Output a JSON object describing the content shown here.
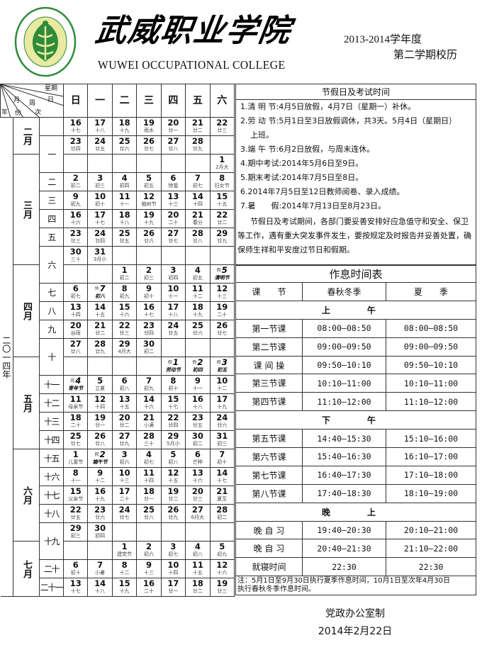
{
  "header": {
    "logo_text": "武威职业学院 WUWEI OCCUPATIONAL COLLEGE 2002.8.8",
    "title_cn": "武威职业学院",
    "title_en": "WUWEI OCCUPATIONAL COLLEGE",
    "term_line1": "2013-2014学年度",
    "term_line2": "第二学期校历",
    "colors": {
      "logo_green": "#2e8b3a",
      "logo_yellow": "#e8eaa0"
    }
  },
  "calendar": {
    "corner": {
      "weekday": "星期",
      "day": "日",
      "month": "月",
      "week": "周",
      "year": "年",
      "part": "份",
      "order": "次"
    },
    "weekdays": [
      "日",
      "一",
      "二",
      "三",
      "四",
      "五",
      "六"
    ],
    "year": "二〇一四年",
    "rows": [
      {
        "month": {
          "label": "二月",
          "span": 2
        },
        "week": {
          "label": "",
          "span": 1
        },
        "days": [
          {
            "d": "16",
            "l": "十七"
          },
          {
            "d": "17",
            "l": "十八"
          },
          {
            "d": "18",
            "l": "十九"
          },
          {
            "d": "19",
            "l": "雨水"
          },
          {
            "d": "20",
            "l": "廿一"
          },
          {
            "d": "21",
            "l": "廿二"
          },
          {
            "d": "22",
            "l": "廿三"
          }
        ]
      },
      {
        "week": {
          "label": "一",
          "span": 2
        },
        "days": [
          {
            "d": "23",
            "l": "廿四"
          },
          {
            "d": "24",
            "l": "廿五"
          },
          {
            "d": "25",
            "l": "廿六"
          },
          {
            "d": "26",
            "l": "廿七"
          },
          {
            "d": "27",
            "l": "廿八"
          },
          {
            "d": "28",
            "l": "廿九"
          },
          null
        ]
      },
      {
        "month": {
          "label": "三月",
          "span": 6
        },
        "days": [
          null,
          null,
          null,
          null,
          null,
          null,
          {
            "d": "1",
            "l": "2月大"
          }
        ]
      },
      {
        "week": {
          "label": "二",
          "span": 1
        },
        "days": [
          {
            "d": "2",
            "l": "初二"
          },
          {
            "d": "3",
            "l": "初三"
          },
          {
            "d": "4",
            "l": "初四"
          },
          {
            "d": "5",
            "l": "初五"
          },
          {
            "d": "6",
            "l": "惊蛰"
          },
          {
            "d": "7",
            "l": "初七"
          },
          {
            "d": "8",
            "l": "妇女节"
          }
        ]
      },
      {
        "week": {
          "label": "三",
          "span": 1
        },
        "days": [
          {
            "d": "9",
            "l": "初九"
          },
          {
            "d": "10",
            "l": "初十"
          },
          {
            "d": "11",
            "l": "十一"
          },
          {
            "d": "12",
            "l": "植树节"
          },
          {
            "d": "13",
            "l": "十三"
          },
          {
            "d": "14",
            "l": "十四"
          },
          {
            "d": "15",
            "l": "十五"
          }
        ]
      },
      {
        "week": {
          "label": "四",
          "span": 1
        },
        "days": [
          {
            "d": "16",
            "l": "十六"
          },
          {
            "d": "17",
            "l": "十七"
          },
          {
            "d": "18",
            "l": "十八"
          },
          {
            "d": "19",
            "l": "十九"
          },
          {
            "d": "20",
            "l": "二十"
          },
          {
            "d": "21",
            "l": "春分"
          },
          {
            "d": "22",
            "l": "廿二"
          }
        ]
      },
      {
        "week": {
          "label": "五",
          "span": 1
        },
        "days": [
          {
            "d": "23",
            "l": "廿三"
          },
          {
            "d": "24",
            "l": "廿四"
          },
          {
            "d": "25",
            "l": "廿五"
          },
          {
            "d": "26",
            "l": "廿六"
          },
          {
            "d": "27",
            "l": "廿七"
          },
          {
            "d": "28",
            "l": "廿八"
          },
          {
            "d": "29",
            "l": "廿九"
          }
        ]
      },
      {
        "week": {
          "label": "六",
          "span": 2
        },
        "days": [
          {
            "d": "30",
            "l": "三十"
          },
          {
            "d": "31",
            "l": "3月小"
          },
          null,
          null,
          null,
          null,
          null
        ]
      },
      {
        "month": {
          "label": "四月",
          "span": 5
        },
        "days": [
          null,
          null,
          {
            "d": "1",
            "l": "初二"
          },
          {
            "d": "2",
            "l": "初三"
          },
          {
            "d": "3",
            "l": "初四"
          },
          {
            "d": "4",
            "l": "初五"
          },
          {
            "d": "5",
            "l": "清明节",
            "mark": "假",
            "em": true
          }
        ]
      },
      {
        "week": {
          "label": "七",
          "span": 1
        },
        "days": [
          {
            "d": "6",
            "l": "初七"
          },
          {
            "d": "7",
            "l": "初八",
            "mark": "休",
            "em": true
          },
          {
            "d": "8",
            "l": "初九"
          },
          {
            "d": "9",
            "l": "初十"
          },
          {
            "d": "10",
            "l": "十一"
          },
          {
            "d": "11",
            "l": "十二"
          },
          {
            "d": "12",
            "l": "十三"
          }
        ]
      },
      {
        "week": {
          "label": "八",
          "span": 1
        },
        "days": [
          {
            "d": "13",
            "l": "十四"
          },
          {
            "d": "14",
            "l": "十五"
          },
          {
            "d": "15",
            "l": "十六"
          },
          {
            "d": "16",
            "l": "十七"
          },
          {
            "d": "17",
            "l": "十八"
          },
          {
            "d": "18",
            "l": "十九"
          },
          {
            "d": "19",
            "l": "二十"
          }
        ]
      },
      {
        "week": {
          "label": "九",
          "span": 1
        },
        "days": [
          {
            "d": "20",
            "l": "谷雨"
          },
          {
            "d": "21",
            "l": "廿二"
          },
          {
            "d": "22",
            "l": "廿三"
          },
          {
            "d": "23",
            "l": "廿四"
          },
          {
            "d": "24",
            "l": "廿五"
          },
          {
            "d": "25",
            "l": "廿六"
          },
          {
            "d": "26",
            "l": "廿七"
          }
        ]
      },
      {
        "week": {
          "label": "十",
          "span": 2
        },
        "days": [
          {
            "d": "27",
            "l": "廿八"
          },
          {
            "d": "28",
            "l": "廿九"
          },
          {
            "d": "29",
            "l": "4月大"
          },
          {
            "d": "30",
            "l": "初二"
          },
          null,
          null,
          null
        ]
      },
      {
        "month": {
          "label": "五月",
          "span": 5
        },
        "days": [
          null,
          null,
          null,
          null,
          {
            "d": "1",
            "l": "劳动节",
            "mark": "假",
            "em": true
          },
          {
            "d": "2",
            "l": "初四",
            "mark": "假",
            "em": true
          },
          {
            "d": "3",
            "l": "初五",
            "mark": "假",
            "em": true
          }
        ]
      },
      {
        "week": {
          "label": "十一",
          "span": 1
        },
        "days": [
          {
            "d": "4",
            "l": "青年节",
            "mark": "班",
            "em": true
          },
          {
            "d": "5",
            "l": "立夏"
          },
          {
            "d": "6",
            "l": "初八"
          },
          {
            "d": "7",
            "l": "初九"
          },
          {
            "d": "8",
            "l": "初十"
          },
          {
            "d": "9",
            "l": "十一"
          },
          {
            "d": "10",
            "l": "十二"
          }
        ]
      },
      {
        "week": {
          "label": "十二",
          "span": 1
        },
        "days": [
          {
            "d": "11",
            "l": "母亲节"
          },
          {
            "d": "12",
            "l": "十四"
          },
          {
            "d": "13",
            "l": "十五"
          },
          {
            "d": "14",
            "l": "十六"
          },
          {
            "d": "15",
            "l": "十七"
          },
          {
            "d": "16",
            "l": "十八"
          },
          {
            "d": "17",
            "l": "十九"
          }
        ]
      },
      {
        "week": {
          "label": "十三",
          "span": 1
        },
        "days": [
          {
            "d": "18",
            "l": "二十"
          },
          {
            "d": "19",
            "l": "廿一"
          },
          {
            "d": "20",
            "l": "廿二"
          },
          {
            "d": "21",
            "l": "小满"
          },
          {
            "d": "22",
            "l": "廿四"
          },
          {
            "d": "23",
            "l": "廿五"
          },
          {
            "d": "24",
            "l": "廿六"
          }
        ]
      },
      {
        "week": {
          "label": "十四",
          "span": 1
        },
        "days": [
          {
            "d": "25",
            "l": "廿七"
          },
          {
            "d": "26",
            "l": "廿八"
          },
          {
            "d": "27",
            "l": "廿九"
          },
          {
            "d": "28",
            "l": "三十"
          },
          {
            "d": "29",
            "l": "5月小"
          },
          {
            "d": "30",
            "l": "初二"
          },
          {
            "d": "31",
            "l": "初三"
          }
        ]
      },
      {
        "month": {
          "label": "六月",
          "span": 5
        },
        "week": {
          "label": "十五",
          "span": 1
        },
        "days": [
          {
            "d": "1",
            "l": "儿童节"
          },
          {
            "d": "2",
            "l": "端午节",
            "mark": "假",
            "em": true
          },
          {
            "d": "3",
            "l": "初六"
          },
          {
            "d": "4",
            "l": "初七"
          },
          {
            "d": "5",
            "l": "初八"
          },
          {
            "d": "6",
            "l": "芒种"
          },
          {
            "d": "7",
            "l": "初十"
          }
        ]
      },
      {
        "week": {
          "label": "十六",
          "span": 1
        },
        "days": [
          {
            "d": "8",
            "l": "十一"
          },
          {
            "d": "9",
            "l": "十二"
          },
          {
            "d": "10",
            "l": "十三"
          },
          {
            "d": "11",
            "l": "十四"
          },
          {
            "d": "12",
            "l": "十五"
          },
          {
            "d": "13",
            "l": "十六"
          },
          {
            "d": "14",
            "l": "十七"
          }
        ]
      },
      {
        "week": {
          "label": "十七",
          "span": 1
        },
        "days": [
          {
            "d": "15",
            "l": "父亲节"
          },
          {
            "d": "16",
            "l": "十九"
          },
          {
            "d": "17",
            "l": "二十"
          },
          {
            "d": "18",
            "l": "廿一"
          },
          {
            "d": "19",
            "l": "廿二"
          },
          {
            "d": "20",
            "l": "廿三"
          },
          {
            "d": "21",
            "l": "夏至"
          }
        ]
      },
      {
        "week": {
          "label": "十八",
          "span": 1
        },
        "days": [
          {
            "d": "22",
            "l": "廿五"
          },
          {
            "d": "23",
            "l": "廿六"
          },
          {
            "d": "24",
            "l": "廿七"
          },
          {
            "d": "25",
            "l": "廿八"
          },
          {
            "d": "26",
            "l": "廿九"
          },
          {
            "d": "27",
            "l": "6月大"
          },
          {
            "d": "28",
            "l": "初二"
          }
        ]
      },
      {
        "week": {
          "label": "十九",
          "span": 2
        },
        "days": [
          {
            "d": "29",
            "l": "初三"
          },
          {
            "d": "30",
            "l": "初四"
          },
          null,
          null,
          null,
          null,
          null
        ]
      },
      {
        "month": {
          "label": "七月",
          "span": 3
        },
        "days": [
          null,
          null,
          {
            "d": "1",
            "l": "建党节"
          },
          {
            "d": "2",
            "l": "初六"
          },
          {
            "d": "3",
            "l": "初七"
          },
          {
            "d": "4",
            "l": "初八"
          },
          {
            "d": "5",
            "l": "初九"
          }
        ]
      },
      {
        "week": {
          "label": "二十",
          "span": 1
        },
        "days": [
          {
            "d": "6",
            "l": "初十"
          },
          {
            "d": "7",
            "l": "小暑"
          },
          {
            "d": "8",
            "l": "十二"
          },
          {
            "d": "9",
            "l": "十三"
          },
          {
            "d": "10",
            "l": "十四"
          },
          {
            "d": "11",
            "l": "十五"
          },
          {
            "d": "12",
            "l": "十六"
          }
        ]
      },
      {
        "week": {
          "label": "二十一",
          "span": 1
        },
        "days": [
          {
            "d": "13",
            "l": "十七"
          },
          {
            "d": "14",
            "l": "十八"
          },
          {
            "d": "15",
            "l": "十九"
          },
          {
            "d": "16",
            "l": "二十"
          },
          {
            "d": "17",
            "l": "廿一"
          },
          {
            "d": "18",
            "l": "廿二"
          },
          {
            "d": "19",
            "l": "廿三"
          }
        ]
      }
    ]
  },
  "notices": {
    "title": "节假日及考试时间",
    "items": [
      "1.清 明 节:4月5日放假，4月7日（星期一）补休。",
      "2.劳 动 节:5月1日至3日放假调休，共3天。5月4日（星期日）",
      "上班。",
      "3.端 午 节:6月2日放假，与周末连休。",
      "4.期中考试:2014年5月6日至9日。",
      "5.期末考试:2014年7月5日至8日。",
      "6.2014年7月5日至12日教师阅卷、录入成绩。",
      "7.暑　　假:2014年7月13日至8月23日。"
    ],
    "paragraph": "节假日及考试期间，各部门要妥善安排好应急值守和安全、保卫等工作，遇有重大突发事件发生，要按规定及时报告并妥善处置，确保师生祥和平安度过节日和假期。"
  },
  "schedule": {
    "title": "作息时间表",
    "headers": [
      "课　　节",
      "春秋冬季",
      "夏　　季"
    ],
    "sections": [
      {
        "label": "上　午",
        "rows": [
          [
            "第一节课",
            "08:00—08:50",
            "08:00—08:50"
          ],
          [
            "第二节课",
            "09:00—09:50",
            "09:00—09:50"
          ],
          [
            "课 间 操",
            "09:50—10:10",
            "09:50—10:10"
          ],
          [
            "第三节课",
            "10:10—11:00",
            "10:10—11:00"
          ],
          [
            "第四节课",
            "11:10—12:00",
            "11:10—12:00"
          ]
        ]
      },
      {
        "label": "下　午",
        "rows": [
          [
            "第五节课",
            "14:40—15:30",
            "15:10—16:00"
          ],
          [
            "第六节课",
            "15:40—16:30",
            "16:10—17:00"
          ],
          [
            "第七节课",
            "16:40—17:30",
            "17:10—18:00"
          ],
          [
            "第八节课",
            "17:40—18:30",
            "18:10—19:00"
          ]
        ]
      },
      {
        "label": "晚　上",
        "rows": [
          [
            "晚 自 习",
            "19:40—20:30",
            "20:10—21:00"
          ],
          [
            "晚 自 习",
            "20:40—21:30",
            "21:10—22:00"
          ],
          [
            "就寝时间",
            "22:30",
            "22:30"
          ]
        ]
      }
    ],
    "note": "注：5月1日至9月30日执行夏季作息时间，10月1日至次年4月30日　　　执行春秋冬季作息时间。"
  },
  "footer": {
    "issuer": "党政办公室制",
    "date": "2014年2月22日"
  }
}
